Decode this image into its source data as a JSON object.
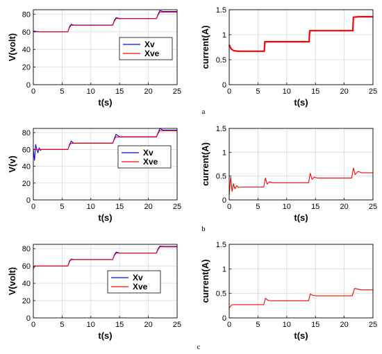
{
  "captions": [
    "a",
    "b",
    "c"
  ],
  "colors": {
    "xv": "#0000ff",
    "xve": "#ff0000",
    "current": "#ff0000",
    "grid": "#d9d9d9"
  },
  "chart_data": [
    {
      "type": "line",
      "panel": "a-voltage",
      "xlabel": "t(s)",
      "ylabel": "V(volt)",
      "xlim": [
        0,
        25
      ],
      "ylim": [
        0,
        85
      ],
      "xticks": [
        0,
        5,
        10,
        15,
        20,
        25
      ],
      "yticks": [
        0,
        20,
        40,
        60,
        80
      ],
      "grid": true,
      "legend": "center-right",
      "series": [
        {
          "name": "Xv",
          "color": "#0000ff",
          "x": [
            0,
            0.3,
            1,
            6,
            6.3,
            6.6,
            7,
            13.8,
            14.1,
            14.4,
            15,
            21.4,
            21.7,
            22,
            22.5,
            25
          ],
          "y": [
            61,
            60.5,
            60,
            60,
            66,
            68.5,
            67.5,
            67.5,
            73,
            76,
            75,
            75,
            80,
            84,
            83,
            83
          ]
        },
        {
          "name": "Xve",
          "color": "#ff0000",
          "x": [
            0,
            0.3,
            1,
            6,
            6.3,
            6.6,
            7,
            13.8,
            14.1,
            14.4,
            15,
            21.4,
            21.7,
            22,
            22.5,
            25
          ],
          "y": [
            60,
            60,
            60,
            60,
            65,
            67.5,
            67.3,
            67.3,
            72,
            75,
            74.8,
            74.8,
            79,
            82.5,
            82.3,
            82.3
          ]
        }
      ]
    },
    {
      "type": "line",
      "panel": "a-current",
      "xlabel": "t(s)",
      "ylabel": "current(A)",
      "xlim": [
        0,
        25
      ],
      "ylim": [
        0,
        1.5
      ],
      "xticks": [
        0,
        5,
        10,
        15,
        20,
        25
      ],
      "yticks": [
        0,
        0.5,
        1,
        1.5
      ],
      "grid": true,
      "series": [
        {
          "color": "#ff0000",
          "x": [
            0,
            0.3,
            0.8,
            1.5,
            6.1,
            6.2,
            7,
            13.9,
            14,
            15,
            21.5,
            21.6,
            22.5,
            25
          ],
          "y": [
            0.8,
            0.72,
            0.68,
            0.67,
            0.67,
            0.86,
            0.86,
            0.86,
            1.08,
            1.08,
            1.08,
            1.35,
            1.36,
            1.36
          ]
        }
      ]
    },
    {
      "type": "line",
      "panel": "b-voltage",
      "xlabel": "t(s)",
      "ylabel": "V(v)",
      "xlim": [
        0,
        25
      ],
      "ylim": [
        0,
        85
      ],
      "xticks": [
        0,
        5,
        10,
        15,
        20,
        25
      ],
      "yticks": [
        0,
        20,
        40,
        60,
        80
      ],
      "grid": true,
      "legend": "center-right",
      "series": [
        {
          "name": "Xv",
          "color": "#0000ff",
          "x": [
            0,
            0.2,
            0.4,
            0.6,
            0.8,
            1.0,
            1.2,
            1.5,
            2,
            6,
            6.3,
            6.6,
            7,
            13.8,
            14.1,
            14.4,
            15,
            21.4,
            21.7,
            22,
            22.5,
            25
          ],
          "y": [
            60,
            47,
            66,
            60,
            56,
            62,
            59,
            60,
            60,
            60,
            66,
            70,
            67.5,
            67.5,
            73,
            78,
            75,
            75,
            80,
            85,
            83,
            83
          ]
        },
        {
          "name": "Xve",
          "color": "#ff0000",
          "x": [
            0,
            0.3,
            1,
            6,
            6.3,
            6.6,
            7,
            13.8,
            14.1,
            14.4,
            15,
            21.4,
            21.7,
            22,
            22.5,
            25
          ],
          "y": [
            60,
            60,
            60,
            60,
            65,
            67.5,
            67.3,
            67.3,
            72,
            75,
            74.8,
            74.8,
            79,
            82.5,
            82.3,
            82.3
          ]
        }
      ]
    },
    {
      "type": "line",
      "panel": "b-current",
      "xlabel": "t(s)",
      "ylabel": "current(A)",
      "xlim": [
        0,
        25
      ],
      "ylim": [
        0,
        1.5
      ],
      "xticks": [
        0,
        5,
        10,
        15,
        20,
        25
      ],
      "yticks": [
        0,
        0.5,
        1,
        1.5
      ],
      "grid": true,
      "series": [
        {
          "color": "#ff0000",
          "x": [
            0,
            0.25,
            0.5,
            0.75,
            1.0,
            1.3,
            1.6,
            2,
            6,
            6.3,
            6.6,
            7,
            7.5,
            13.8,
            14.1,
            14.4,
            14.8,
            15.3,
            21.3,
            21.6,
            21.9,
            22.4,
            23,
            25
          ],
          "y": [
            0.1,
            0.48,
            0.18,
            0.34,
            0.23,
            0.3,
            0.26,
            0.27,
            0.27,
            0.46,
            0.33,
            0.38,
            0.36,
            0.36,
            0.56,
            0.43,
            0.48,
            0.46,
            0.46,
            0.67,
            0.53,
            0.6,
            0.57,
            0.57
          ]
        }
      ]
    },
    {
      "type": "line",
      "panel": "c-voltage",
      "xlabel": "t(s)",
      "ylabel": "V(volt)",
      "xlim": [
        0,
        25
      ],
      "ylim": [
        0,
        85
      ],
      "xticks": [
        0,
        5,
        10,
        15,
        20,
        25
      ],
      "yticks": [
        0,
        20,
        40,
        60,
        80
      ],
      "grid": true,
      "legend": "lower-center",
      "series": [
        {
          "name": "Xv",
          "color": "#0000ff",
          "x": [
            0,
            0.3,
            1,
            6,
            6.3,
            6.6,
            7,
            13.8,
            14.1,
            14.4,
            15,
            21.4,
            21.7,
            22,
            22.5,
            25
          ],
          "y": [
            57,
            60,
            60,
            60,
            66,
            68,
            67.5,
            67.5,
            73,
            76,
            75,
            75,
            80,
            83,
            82.5,
            82.5
          ]
        },
        {
          "name": "Xve",
          "color": "#ff0000",
          "x": [
            0,
            0.3,
            1,
            6,
            6.3,
            6.6,
            7,
            13.8,
            14.1,
            14.4,
            15,
            21.4,
            21.7,
            22,
            22.5,
            25
          ],
          "y": [
            58,
            60,
            60,
            60,
            65,
            67.5,
            67.3,
            67.3,
            72,
            75,
            74.8,
            74.8,
            79,
            82,
            82,
            82
          ]
        }
      ]
    },
    {
      "type": "line",
      "panel": "c-current",
      "xlabel": "t(s)",
      "ylabel": "current(A)",
      "xlim": [
        0,
        25
      ],
      "ylim": [
        0,
        1.5
      ],
      "xticks": [
        0,
        5,
        10,
        15,
        20,
        25
      ],
      "yticks": [
        0,
        0.5,
        1,
        1.5
      ],
      "grid": true,
      "series": [
        {
          "color": "#ff0000",
          "x": [
            0,
            0.3,
            0.6,
            1,
            6,
            6.3,
            6.7,
            7.3,
            8,
            13.8,
            14.1,
            14.5,
            15.2,
            16,
            21.4,
            21.8,
            22.3,
            23,
            25
          ],
          "y": [
            0.2,
            0.25,
            0.27,
            0.27,
            0.27,
            0.4,
            0.36,
            0.35,
            0.35,
            0.35,
            0.49,
            0.46,
            0.45,
            0.45,
            0.45,
            0.6,
            0.59,
            0.57,
            0.57
          ]
        }
      ]
    }
  ]
}
